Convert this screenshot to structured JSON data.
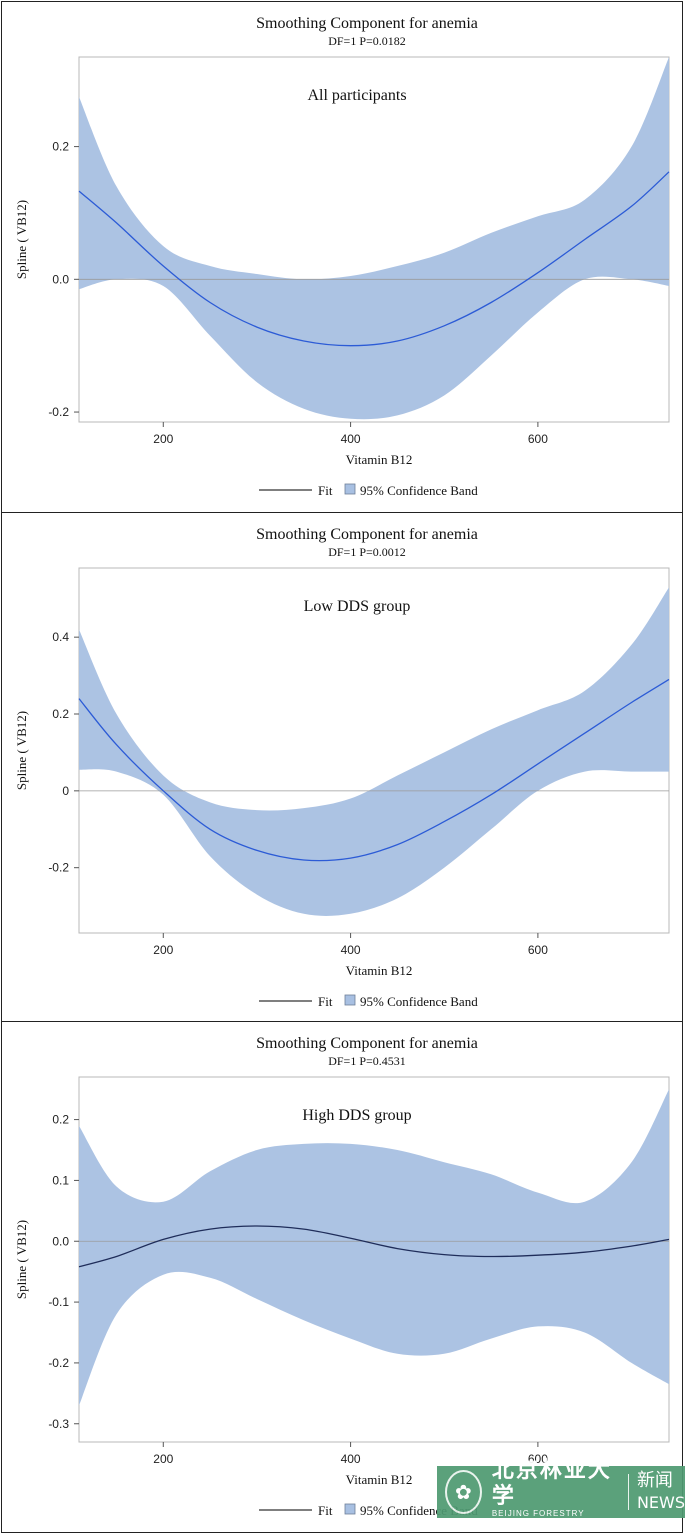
{
  "chart_data": [
    {
      "type": "line",
      "title": "Smoothing Component for anemia",
      "subtitle": "DF=1 P=0.0182",
      "annotation": "All participants",
      "xlabel": "Vitamin B12",
      "ylabel": "Spline ( VB12)",
      "xlim": [
        110,
        740
      ],
      "ylim": [
        -0.215,
        0.335
      ],
      "xticks": [
        200,
        400,
        600
      ],
      "xtick_labels": [
        "200",
        "400",
        "600"
      ],
      "yticks": [
        -0.2,
        0.0,
        0.2
      ],
      "ytick_labels": [
        "-0.2",
        "0.0",
        "0.2"
      ],
      "reference_line": 0,
      "series": [
        {
          "name": "Fit",
          "x": [
            110,
            150,
            200,
            250,
            300,
            350,
            400,
            450,
            500,
            550,
            600,
            650,
            700,
            740
          ],
          "values": [
            0.133,
            0.085,
            0.02,
            -0.035,
            -0.072,
            -0.093,
            -0.1,
            -0.093,
            -0.07,
            -0.035,
            0.01,
            0.06,
            0.11,
            0.162
          ]
        },
        {
          "name": "95% Confidence Band",
          "x": [
            110,
            150,
            200,
            250,
            300,
            350,
            400,
            450,
            500,
            550,
            600,
            650,
            700,
            740
          ],
          "upper": [
            0.275,
            0.14,
            0.05,
            0.02,
            0.008,
            0.0,
            0.005,
            0.02,
            0.04,
            0.07,
            0.095,
            0.12,
            0.2,
            0.335
          ],
          "lower": [
            -0.015,
            0.0,
            -0.01,
            -0.085,
            -0.155,
            -0.195,
            -0.21,
            -0.205,
            -0.175,
            -0.115,
            -0.05,
            0.0,
            0.0,
            -0.01
          ]
        }
      ]
    },
    {
      "type": "line",
      "title": "Smoothing Component for anemia",
      "subtitle": "DF=1 P=0.0012",
      "annotation": "Low DDS group",
      "xlabel": "Vitamin B12",
      "ylabel": "Spline ( VB12)",
      "xlim": [
        110,
        740
      ],
      "ylim": [
        -0.37,
        0.58
      ],
      "xticks": [
        200,
        400,
        600
      ],
      "xtick_labels": [
        "200",
        "400",
        "600"
      ],
      "yticks": [
        -0.2,
        0.0,
        0.2,
        0.4
      ],
      "ytick_labels": [
        "-0.2",
        "0",
        "0.2",
        "0.4"
      ],
      "reference_line": 0,
      "series": [
        {
          "name": "Fit",
          "x": [
            110,
            150,
            200,
            250,
            300,
            350,
            400,
            450,
            500,
            550,
            600,
            650,
            700,
            740
          ],
          "values": [
            0.24,
            0.12,
            0.0,
            -0.1,
            -0.155,
            -0.18,
            -0.175,
            -0.14,
            -0.08,
            -0.01,
            0.07,
            0.15,
            0.23,
            0.29
          ]
        },
        {
          "name": "95% Confidence Band",
          "x": [
            110,
            150,
            200,
            250,
            300,
            350,
            400,
            450,
            500,
            550,
            600,
            650,
            700,
            740
          ],
          "upper": [
            0.42,
            0.2,
            0.04,
            -0.03,
            -0.05,
            -0.045,
            -0.02,
            0.04,
            0.1,
            0.16,
            0.21,
            0.26,
            0.38,
            0.53
          ],
          "lower": [
            0.055,
            0.05,
            -0.01,
            -0.17,
            -0.27,
            -0.32,
            -0.32,
            -0.28,
            -0.2,
            -0.1,
            0.0,
            0.05,
            0.05,
            0.05
          ]
        }
      ]
    },
    {
      "type": "line",
      "title": "Smoothing Component for anemia",
      "subtitle": "DF=1 P=0.4531",
      "annotation": "High DDS group",
      "xlabel": "Vitamin B12",
      "ylabel": "Spline ( VB12)",
      "xlim": [
        110,
        740
      ],
      "ylim": [
        -0.33,
        0.27
      ],
      "xticks": [
        200,
        400,
        600
      ],
      "xtick_labels": [
        "200",
        "400",
        "600"
      ],
      "yticks": [
        -0.3,
        -0.2,
        -0.1,
        0.0,
        0.1,
        0.2
      ],
      "ytick_labels": [
        "-0.3",
        "-0.2",
        "-0.1",
        "0.0",
        "0.1",
        "0.2"
      ],
      "reference_line": 0,
      "series": [
        {
          "name": "Fit",
          "x": [
            110,
            150,
            200,
            250,
            300,
            350,
            400,
            450,
            500,
            550,
            600,
            650,
            700,
            740
          ],
          "values": [
            -0.042,
            -0.025,
            0.003,
            0.02,
            0.025,
            0.02,
            0.005,
            -0.012,
            -0.022,
            -0.025,
            -0.023,
            -0.018,
            -0.008,
            0.003
          ]
        },
        {
          "name": "95% Confidence Band",
          "x": [
            110,
            150,
            200,
            250,
            300,
            350,
            400,
            450,
            500,
            550,
            600,
            650,
            700,
            740
          ],
          "upper": [
            0.19,
            0.09,
            0.065,
            0.115,
            0.15,
            0.16,
            0.16,
            0.15,
            0.13,
            0.11,
            0.08,
            0.065,
            0.13,
            0.25
          ],
          "lower": [
            -0.27,
            -0.12,
            -0.055,
            -0.06,
            -0.095,
            -0.13,
            -0.16,
            -0.185,
            -0.185,
            -0.16,
            -0.14,
            -0.15,
            -0.2,
            -0.235
          ]
        }
      ]
    }
  ],
  "watermark": {
    "name_cn": "北京林业大学",
    "name_en": "BEIJING FORESTRY UNIVERSITY",
    "news_cn": "新闻",
    "news_en": "NEWS"
  },
  "colors": {
    "band": "#a8c0e2",
    "fit_dark": "#1f2d5a",
    "fit_blue": "#2c5bd6",
    "axis": "#b8b8b8",
    "text": "#111111"
  }
}
